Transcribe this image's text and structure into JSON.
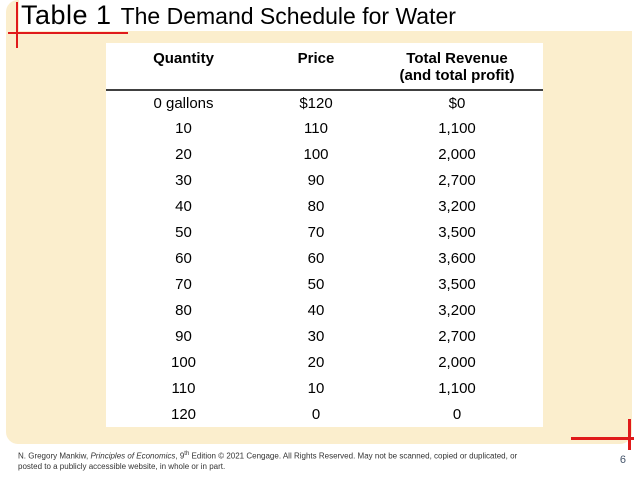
{
  "slide": {
    "title_label": "Table 1",
    "title_text": "The Demand Schedule for Water",
    "page_number": "6"
  },
  "table": {
    "headers": {
      "quantity": "Quantity",
      "price": "Price",
      "revenue_line1": "Total Revenue",
      "revenue_line2": "(and total profit)"
    },
    "rows": [
      [
        "0 gallons",
        "$120",
        "$0"
      ],
      [
        "10",
        "110",
        "1,100"
      ],
      [
        "20",
        "100",
        "2,000"
      ],
      [
        "30",
        "90",
        "2,700"
      ],
      [
        "40",
        "80",
        "3,200"
      ],
      [
        "50",
        "70",
        "3,500"
      ],
      [
        "60",
        "60",
        "3,600"
      ],
      [
        "70",
        "50",
        "3,500"
      ],
      [
        "80",
        "40",
        "3,200"
      ],
      [
        "90",
        "30",
        "2,700"
      ],
      [
        "100",
        "20",
        "2,000"
      ],
      [
        "110",
        "10",
        "1,100"
      ],
      [
        "120",
        "0",
        "0"
      ]
    ]
  },
  "footer": {
    "credit_pre": "N. Gregory Mankiw, ",
    "credit_book": "Principles of Economics",
    "credit_mid": ", 9",
    "credit_sup": "th",
    "credit_post": " Edition © 2021 Cengage. All Rights Reserved. May not be scanned, copied or duplicated, or",
    "credit_line2": "posted to a publicly accessible website, in whole or in part."
  },
  "colors": {
    "panel_peach": "#FBEECD",
    "accent_red": "#E01A1A",
    "page_number_blue": "#44546A"
  }
}
